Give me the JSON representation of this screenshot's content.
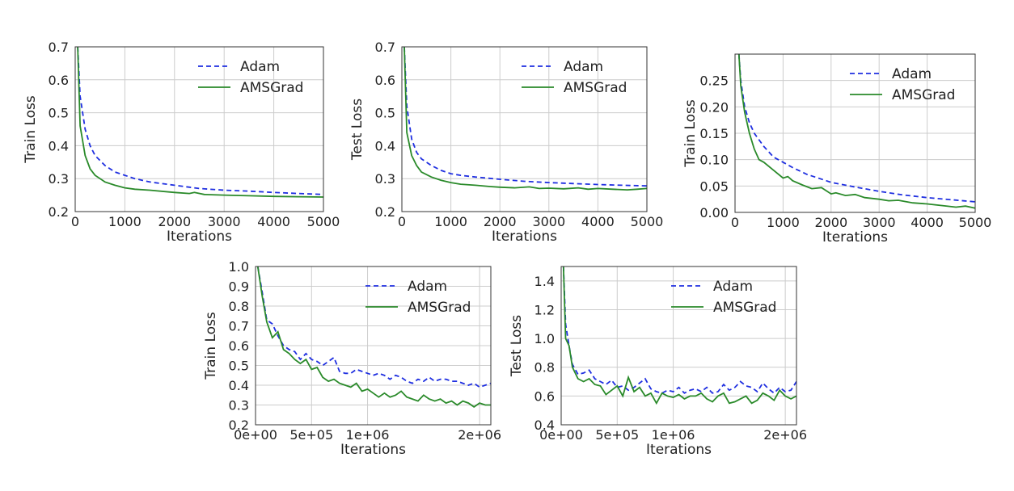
{
  "colors": {
    "Adam": "#1f2fe0",
    "AMSGrad": "#2a8a2a",
    "grid": "#cccccc",
    "axes": "#333333"
  },
  "chart_data": [
    {
      "type": "line",
      "xlabel": "Iterations",
      "ylabel": "Train Loss",
      "xlim": [
        0,
        5000
      ],
      "ylim": [
        0.2,
        0.7
      ],
      "xticks": [
        0,
        1000,
        2000,
        3000,
        4000,
        5000
      ],
      "xtick_labels": [
        "0",
        "1000",
        "2000",
        "3000",
        "4000",
        "5000"
      ],
      "yticks": [
        0.2,
        0.3,
        0.4,
        0.5,
        0.6,
        0.7
      ],
      "ytick_labels": [
        "0.2",
        "0.3",
        "0.4",
        "0.5",
        "0.6",
        "0.7"
      ],
      "grid": true,
      "legend": "upper right",
      "series": [
        {
          "name": "Adam",
          "style": "dashed",
          "x": [
            50,
            100,
            200,
            300,
            400,
            600,
            800,
            1000,
            1200,
            1500,
            2000,
            2500,
            3000,
            3500,
            4000,
            4500,
            5000
          ],
          "y": [
            0.7,
            0.55,
            0.45,
            0.4,
            0.37,
            0.34,
            0.32,
            0.31,
            0.3,
            0.29,
            0.28,
            0.27,
            0.265,
            0.262,
            0.258,
            0.255,
            0.252
          ]
        },
        {
          "name": "AMSGrad",
          "style": "solid",
          "x": [
            50,
            100,
            200,
            300,
            400,
            600,
            800,
            1000,
            1200,
            1500,
            2000,
            2300,
            2400,
            2600,
            3000,
            3500,
            4000,
            4500,
            5000
          ],
          "y": [
            0.7,
            0.46,
            0.37,
            0.33,
            0.31,
            0.29,
            0.28,
            0.272,
            0.268,
            0.265,
            0.258,
            0.255,
            0.258,
            0.252,
            0.25,
            0.248,
            0.246,
            0.245,
            0.244
          ]
        }
      ]
    },
    {
      "type": "line",
      "xlabel": "Iterations",
      "ylabel": "Test Loss",
      "xlim": [
        0,
        5000
      ],
      "ylim": [
        0.2,
        0.7
      ],
      "xticks": [
        0,
        1000,
        2000,
        3000,
        4000,
        5000
      ],
      "xtick_labels": [
        "0",
        "1000",
        "2000",
        "3000",
        "4000",
        "5000"
      ],
      "yticks": [
        0.2,
        0.3,
        0.4,
        0.5,
        0.6,
        0.7
      ],
      "ytick_labels": [
        "0.2",
        "0.3",
        "0.4",
        "0.5",
        "0.6",
        "0.7"
      ],
      "grid": true,
      "legend": "upper right",
      "series": [
        {
          "name": "Adam",
          "style": "dashed",
          "x": [
            50,
            100,
            200,
            300,
            400,
            600,
            800,
            1000,
            1200,
            1500,
            2000,
            2500,
            3000,
            3500,
            4000,
            4500,
            5000
          ],
          "y": [
            0.7,
            0.52,
            0.42,
            0.38,
            0.36,
            0.34,
            0.325,
            0.315,
            0.31,
            0.305,
            0.298,
            0.292,
            0.288,
            0.285,
            0.282,
            0.28,
            0.278
          ]
        },
        {
          "name": "AMSGrad",
          "style": "solid",
          "x": [
            50,
            100,
            200,
            300,
            400,
            600,
            800,
            1000,
            1200,
            1500,
            1800,
            2000,
            2300,
            2600,
            2800,
            3000,
            3300,
            3600,
            3800,
            4000,
            4300,
            4600,
            4800,
            5000
          ],
          "y": [
            0.7,
            0.44,
            0.37,
            0.34,
            0.32,
            0.305,
            0.295,
            0.288,
            0.283,
            0.28,
            0.276,
            0.274,
            0.272,
            0.275,
            0.27,
            0.271,
            0.269,
            0.272,
            0.268,
            0.27,
            0.268,
            0.266,
            0.268,
            0.27
          ]
        }
      ]
    },
    {
      "type": "line",
      "xlabel": "Iterations",
      "ylabel": "Train Loss",
      "xlim": [
        0,
        5000
      ],
      "ylim": [
        0,
        0.3
      ],
      "xticks": [
        0,
        1000,
        2000,
        3000,
        4000,
        5000
      ],
      "xtick_labels": [
        "0",
        "1000",
        "2000",
        "3000",
        "4000",
        "5000"
      ],
      "yticks": [
        0,
        0.05,
        0.1,
        0.15,
        0.2,
        0.25
      ],
      "ytick_labels": [
        "0.00",
        "0.05",
        "0.10",
        "0.15",
        "0.20",
        "0.25"
      ],
      "grid": true,
      "legend": "upper right",
      "series": [
        {
          "name": "Adam",
          "style": "dashed",
          "x": [
            80,
            120,
            200,
            300,
            400,
            600,
            800,
            1000,
            1200,
            1500,
            1800,
            2000,
            2500,
            3000,
            3500,
            4000,
            4500,
            5000
          ],
          "y": [
            0.3,
            0.25,
            0.2,
            0.17,
            0.15,
            0.125,
            0.105,
            0.095,
            0.085,
            0.072,
            0.063,
            0.057,
            0.048,
            0.04,
            0.033,
            0.028,
            0.024,
            0.02
          ]
        },
        {
          "name": "AMSGrad",
          "style": "solid",
          "x": [
            80,
            120,
            200,
            300,
            400,
            500,
            600,
            800,
            1000,
            1100,
            1200,
            1400,
            1600,
            1800,
            2000,
            2100,
            2300,
            2500,
            2700,
            3000,
            3200,
            3400,
            3700,
            4000,
            4300,
            4600,
            4800,
            5000
          ],
          "y": [
            0.3,
            0.24,
            0.19,
            0.15,
            0.12,
            0.1,
            0.095,
            0.08,
            0.065,
            0.068,
            0.06,
            0.052,
            0.045,
            0.047,
            0.035,
            0.037,
            0.032,
            0.034,
            0.028,
            0.025,
            0.022,
            0.023,
            0.018,
            0.016,
            0.013,
            0.01,
            0.012,
            0.008
          ]
        }
      ]
    },
    {
      "type": "line",
      "xlabel": "Iterations",
      "ylabel": "Train Loss",
      "xlim": [
        0,
        2100000
      ],
      "ylim": [
        0.2,
        1.0
      ],
      "xticks": [
        0,
        500000,
        1000000,
        2000000
      ],
      "xtick_labels": [
        "0e+00",
        "5e+05",
        "1e+06",
        "2e+06"
      ],
      "yticks": [
        0.2,
        0.3,
        0.4,
        0.5,
        0.6,
        0.7,
        0.8,
        0.9,
        1.0
      ],
      "ytick_labels": [
        "0.2",
        "0.3",
        "0.4",
        "0.5",
        "0.6",
        "0.7",
        "0.8",
        "0.9",
        "1.0"
      ],
      "grid": true,
      "legend": "upper right",
      "series": [
        {
          "name": "Adam",
          "style": "dashed",
          "x": [
            20000,
            60000,
            100000,
            150000,
            200000,
            250000,
            300000,
            350000,
            400000,
            450000,
            500000,
            550000,
            600000,
            650000,
            700000,
            750000,
            800000,
            850000,
            900000,
            950000,
            1000000,
            1050000,
            1100000,
            1150000,
            1200000,
            1250000,
            1300000,
            1350000,
            1400000,
            1450000,
            1500000,
            1550000,
            1600000,
            1650000,
            1700000,
            1750000,
            1800000,
            1850000,
            1900000,
            1950000,
            2000000,
            2050000,
            2100000
          ],
          "y": [
            1.0,
            0.87,
            0.73,
            0.71,
            0.65,
            0.6,
            0.58,
            0.57,
            0.53,
            0.56,
            0.53,
            0.52,
            0.5,
            0.52,
            0.54,
            0.47,
            0.46,
            0.46,
            0.48,
            0.47,
            0.46,
            0.45,
            0.46,
            0.45,
            0.43,
            0.45,
            0.44,
            0.42,
            0.41,
            0.43,
            0.42,
            0.44,
            0.42,
            0.43,
            0.43,
            0.42,
            0.42,
            0.41,
            0.4,
            0.41,
            0.39,
            0.4,
            0.41
          ]
        },
        {
          "name": "AMSGrad",
          "style": "solid",
          "x": [
            20000,
            60000,
            100000,
            150000,
            200000,
            250000,
            300000,
            350000,
            400000,
            450000,
            500000,
            550000,
            600000,
            650000,
            700000,
            750000,
            800000,
            850000,
            900000,
            950000,
            1000000,
            1050000,
            1100000,
            1150000,
            1200000,
            1250000,
            1300000,
            1350000,
            1400000,
            1450000,
            1500000,
            1550000,
            1600000,
            1650000,
            1700000,
            1750000,
            1800000,
            1850000,
            1900000,
            1950000,
            2000000,
            2050000,
            2100000
          ],
          "y": [
            1.0,
            0.85,
            0.72,
            0.64,
            0.67,
            0.58,
            0.56,
            0.53,
            0.51,
            0.53,
            0.48,
            0.49,
            0.44,
            0.42,
            0.43,
            0.41,
            0.4,
            0.39,
            0.41,
            0.37,
            0.38,
            0.36,
            0.34,
            0.36,
            0.34,
            0.35,
            0.37,
            0.34,
            0.33,
            0.32,
            0.35,
            0.33,
            0.32,
            0.33,
            0.31,
            0.32,
            0.3,
            0.32,
            0.31,
            0.29,
            0.31,
            0.3,
            0.3
          ]
        }
      ]
    },
    {
      "type": "line",
      "xlabel": "Iterations",
      "ylabel": "Test Loss",
      "xlim": [
        0,
        2100000
      ],
      "ylim": [
        0.4,
        1.5
      ],
      "xticks": [
        0,
        500000,
        1000000,
        2000000
      ],
      "xtick_labels": [
        "0e+00",
        "5e+05",
        "1e+06",
        "2e+06"
      ],
      "yticks": [
        0.4,
        0.6,
        0.8,
        1.0,
        1.2,
        1.4
      ],
      "ytick_labels": [
        "0.4",
        "0.6",
        "0.8",
        "1.0",
        "1.2",
        "1.4"
      ],
      "grid": true,
      "legend": "upper right",
      "series": [
        {
          "name": "Adam",
          "style": "dashed",
          "x": [
            20000,
            40000,
            70000,
            100000,
            150000,
            200000,
            250000,
            300000,
            350000,
            400000,
            450000,
            500000,
            550000,
            600000,
            650000,
            700000,
            750000,
            800000,
            850000,
            900000,
            950000,
            1000000,
            1050000,
            1100000,
            1150000,
            1200000,
            1250000,
            1300000,
            1350000,
            1400000,
            1450000,
            1500000,
            1550000,
            1600000,
            1650000,
            1700000,
            1750000,
            1800000,
            1850000,
            1900000,
            1950000,
            2000000,
            2050000,
            2100000
          ],
          "y": [
            1.5,
            1.1,
            0.95,
            0.82,
            0.75,
            0.76,
            0.78,
            0.72,
            0.7,
            0.68,
            0.71,
            0.66,
            0.67,
            0.64,
            0.66,
            0.69,
            0.72,
            0.65,
            0.63,
            0.62,
            0.64,
            0.63,
            0.66,
            0.62,
            0.64,
            0.65,
            0.63,
            0.66,
            0.62,
            0.63,
            0.68,
            0.64,
            0.66,
            0.7,
            0.67,
            0.66,
            0.63,
            0.69,
            0.65,
            0.62,
            0.66,
            0.63,
            0.64,
            0.7
          ]
        },
        {
          "name": "AMSGrad",
          "style": "solid",
          "x": [
            20000,
            40000,
            70000,
            100000,
            150000,
            200000,
            250000,
            300000,
            350000,
            400000,
            450000,
            500000,
            550000,
            600000,
            650000,
            700000,
            750000,
            800000,
            850000,
            900000,
            950000,
            1000000,
            1050000,
            1100000,
            1150000,
            1200000,
            1250000,
            1300000,
            1350000,
            1400000,
            1450000,
            1500000,
            1550000,
            1600000,
            1650000,
            1700000,
            1750000,
            1800000,
            1850000,
            1900000,
            1950000,
            2000000,
            2050000,
            2100000
          ],
          "y": [
            1.5,
            1.0,
            0.95,
            0.8,
            0.72,
            0.7,
            0.72,
            0.68,
            0.67,
            0.61,
            0.64,
            0.67,
            0.6,
            0.73,
            0.63,
            0.66,
            0.6,
            0.62,
            0.55,
            0.62,
            0.6,
            0.59,
            0.61,
            0.58,
            0.6,
            0.6,
            0.62,
            0.58,
            0.56,
            0.6,
            0.62,
            0.55,
            0.56,
            0.58,
            0.6,
            0.55,
            0.57,
            0.62,
            0.6,
            0.57,
            0.64,
            0.6,
            0.58,
            0.6
          ]
        }
      ]
    }
  ]
}
